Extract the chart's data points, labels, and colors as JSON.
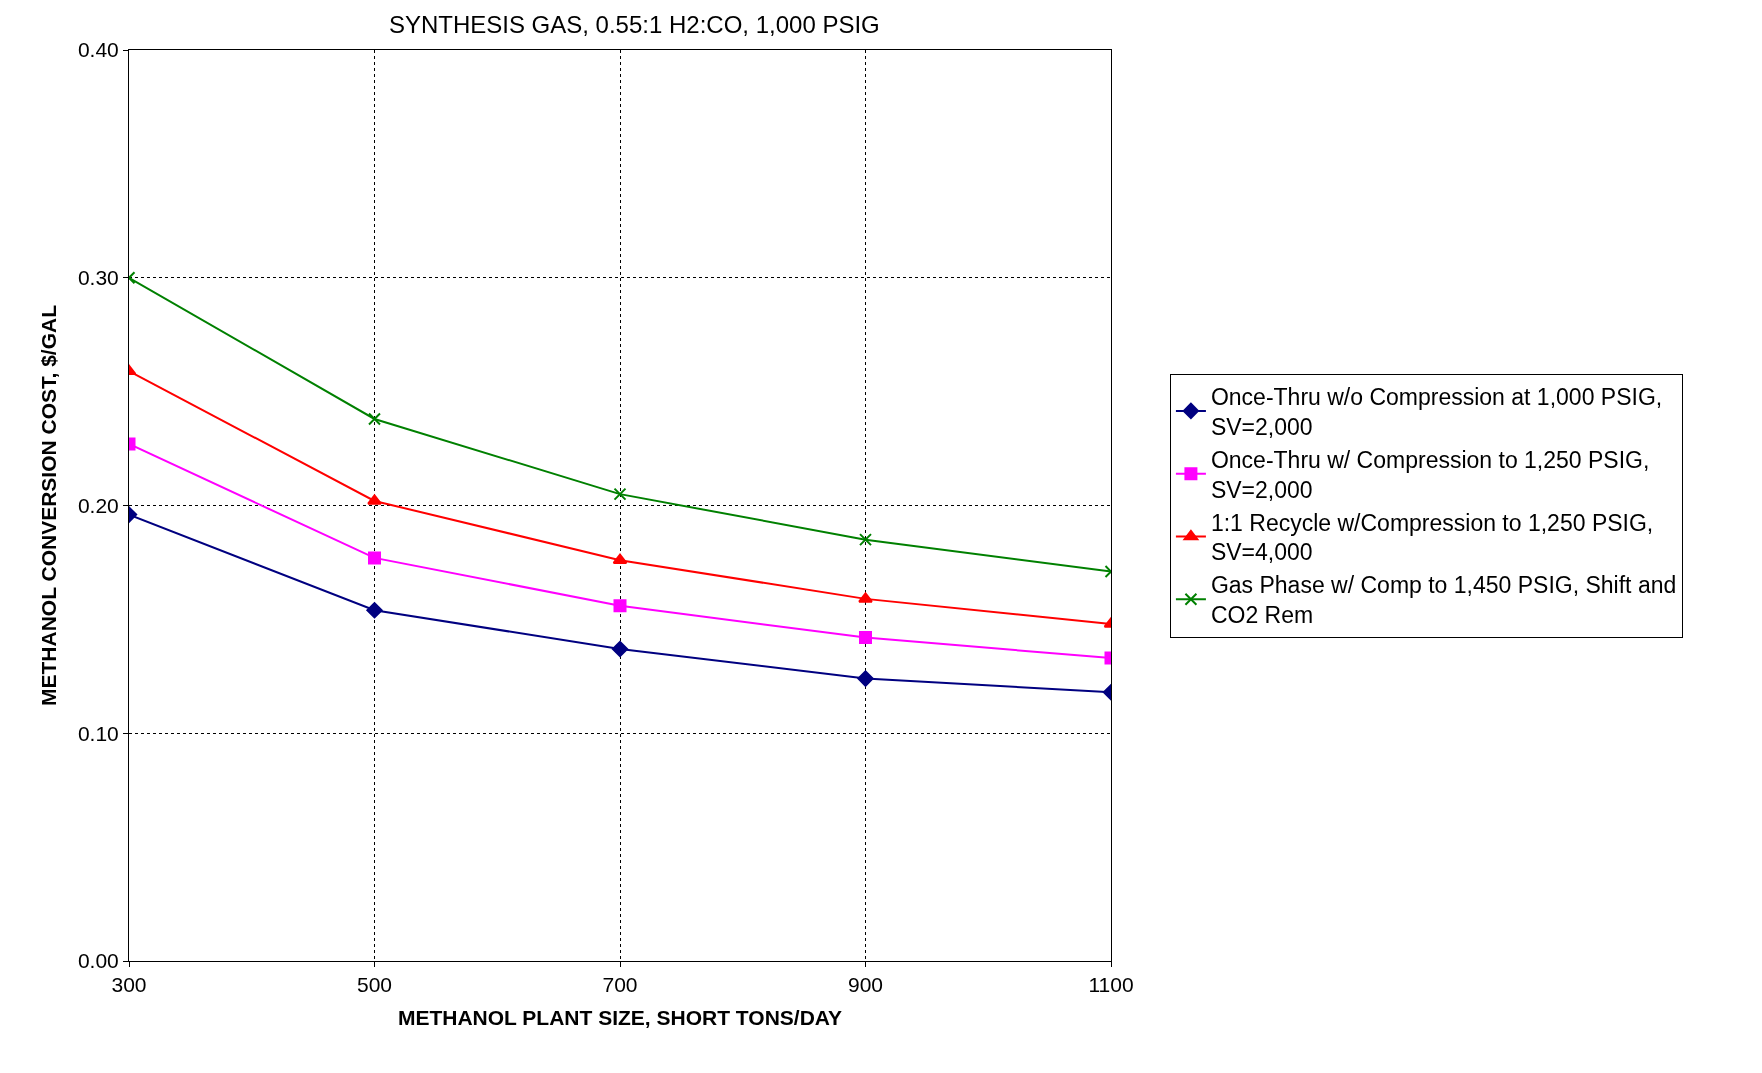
{
  "chart_data": {
    "type": "line",
    "title": "SYNTHESIS GAS, 0.55:1 H2:CO, 1,000 PSIG",
    "xlabel": "METHANOL PLANT SIZE, SHORT TONS/DAY",
    "ylabel": "METHANOL CONVERSION COST, $/GAL",
    "x": [
      300,
      500,
      700,
      900,
      1100
    ],
    "series": [
      {
        "name": "Once-Thru w/o Compression at 1,000 PSIG, SV=2,000",
        "color": "#000080",
        "marker": "diamond",
        "values": [
          0.196,
          0.154,
          0.137,
          0.124,
          0.118
        ]
      },
      {
        "name": "Once-Thru w/ Compression to 1,250 PSIG, SV=2,000",
        "color": "#ff00ff",
        "marker": "square",
        "values": [
          0.227,
          0.177,
          0.156,
          0.142,
          0.133
        ]
      },
      {
        "name": "1:1 Recycle w/Compression to 1,250 PSIG, SV=4,000",
        "color": "#ff0000",
        "marker": "triangle",
        "values": [
          0.259,
          0.202,
          0.176,
          0.159,
          0.148
        ]
      },
      {
        "name": "Gas Phase w/ Comp to 1,450 PSIG, Shift and CO2 Rem",
        "color": "#008000",
        "marker": "cross",
        "values": [
          0.3,
          0.238,
          0.205,
          0.185,
          0.171
        ]
      }
    ],
    "xlim": [
      300,
      1100
    ],
    "xticks": [
      300,
      500,
      700,
      900,
      1100
    ],
    "ylim": [
      0,
      0.4
    ],
    "yticks": [
      {
        "value": 0,
        "label": "0.00"
      },
      {
        "value": 0.1,
        "label": "0.10"
      },
      {
        "value": 0.2,
        "label": "0.20"
      },
      {
        "value": 0.3,
        "label": "0.30"
      },
      {
        "value": 0.4,
        "label": "0.40"
      }
    ],
    "grid": true,
    "legend": "right",
    "line_style": "solid"
  }
}
